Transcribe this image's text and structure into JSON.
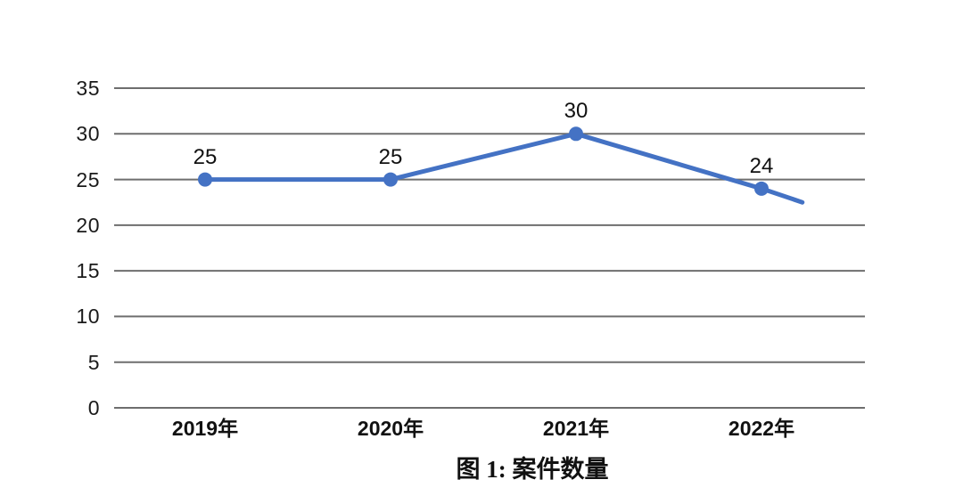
{
  "chart_data": {
    "type": "line",
    "title": "",
    "caption": "图 1: 案件数量",
    "categories": [
      "2019年",
      "2020年",
      "2021年",
      "2022年"
    ],
    "series": [
      {
        "name": "案件数量",
        "values": [
          25,
          25,
          30,
          24
        ]
      }
    ],
    "point_labels": [
      "25",
      "25",
      "30",
      "24"
    ],
    "y_ticks": [
      0,
      5,
      10,
      15,
      20,
      25,
      30,
      35
    ],
    "ylim": [
      0,
      35
    ],
    "xlabel": "",
    "ylabel": "",
    "grid": "horizontal",
    "legend": "none",
    "trailing_segment": {
      "dx_fraction": 0.22,
      "value": 22.5
    },
    "colors": {
      "line": "#4472C4",
      "marker": "#4472C4",
      "gridline": "#6e6e6e",
      "text": "#1a1a1a",
      "background": "#ffffff"
    }
  }
}
